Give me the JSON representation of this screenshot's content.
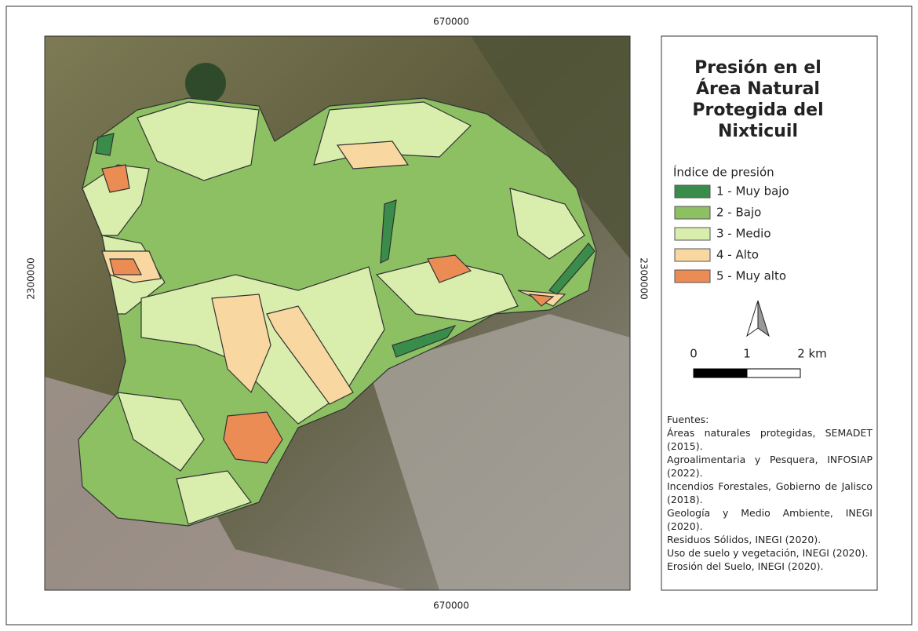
{
  "map": {
    "title": [
      "Presión en el",
      "Área Natural",
      "Protegida del",
      "Nixticuil"
    ],
    "coordinates": {
      "top": "670000",
      "bottom": "670000",
      "left": "2300000",
      "right": "2300000"
    },
    "legend": {
      "title": "Índice de presión",
      "items": [
        {
          "label": "1 - Muy bajo",
          "color": "#3a8c4a"
        },
        {
          "label": "2 - Bajo",
          "color": "#8cc063"
        },
        {
          "label": "3 - Medio",
          "color": "#d9eead"
        },
        {
          "label": "4 - Alto",
          "color": "#f8d8a0"
        },
        {
          "label": "5 - Muy alto",
          "color": "#ec8c55"
        }
      ]
    },
    "scale_bar": {
      "labels": [
        "0",
        "1",
        "2 km"
      ]
    },
    "sources": {
      "heading": "Fuentes:",
      "items": [
        "Áreas naturales protegidas, SEMADET (2015).",
        "Agroalimentaria y Pesquera, INFOSIAP (2022).",
        "Incendios Forestales, Gobierno de Jalisco (2018).",
        "Geología y Medio Ambiente, INEGI (2020).",
        "Residuos Sólidos, INEGI (2020).",
        "Uso de suelo y vegetación, INEGI (2020).",
        "Erosión del Suelo, INEGI (2020)."
      ]
    }
  }
}
